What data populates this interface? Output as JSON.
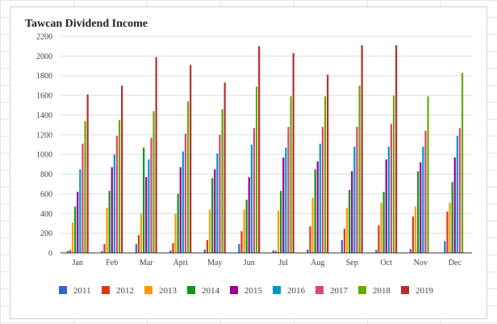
{
  "chart_data": {
    "type": "bar",
    "title": "Tawcan Dividend Income",
    "xlabel": "",
    "ylabel": "",
    "ylim": [
      0,
      2200
    ],
    "yticks": [
      0,
      200,
      400,
      600,
      800,
      1000,
      1200,
      1400,
      1600,
      1800,
      2000,
      2200
    ],
    "grid": true,
    "legend_position": "bottom",
    "categories": [
      "Jan",
      "Feb",
      "Mar",
      "Apri",
      "May",
      "Jun",
      "Jul",
      "Aug",
      "Sep",
      "Oct",
      "Nov",
      "Dec"
    ],
    "series": [
      {
        "name": "2011",
        "color": "#3366cc",
        "values": [
          20,
          20,
          90,
          25,
          35,
          90,
          25,
          35,
          130,
          30,
          40,
          120
        ]
      },
      {
        "name": "2012",
        "color": "#dc3912",
        "values": [
          30,
          90,
          180,
          100,
          130,
          220,
          20,
          270,
          245,
          280,
          370,
          420
        ]
      },
      {
        "name": "2013",
        "color": "#ff9900",
        "values": [
          310,
          460,
          400,
          400,
          440,
          440,
          430,
          560,
          460,
          510,
          470,
          510
        ]
      },
      {
        "name": "2014",
        "color": "#109618",
        "values": [
          470,
          630,
          1070,
          600,
          760,
          540,
          630,
          850,
          640,
          620,
          830,
          720
        ]
      },
      {
        "name": "2015",
        "color": "#990099",
        "values": [
          620,
          870,
          770,
          870,
          850,
          770,
          970,
          930,
          830,
          950,
          920,
          970
        ]
      },
      {
        "name": "2016",
        "color": "#0099c6",
        "values": [
          850,
          1000,
          950,
          1030,
          1010,
          1100,
          1070,
          1110,
          1080,
          1080,
          1080,
          1190
        ]
      },
      {
        "name": "2017",
        "color": "#dd4477",
        "values": [
          1110,
          1190,
          1170,
          1210,
          1200,
          1270,
          1280,
          1280,
          1280,
          1310,
          1240,
          1270
        ]
      },
      {
        "name": "2018",
        "color": "#66aa00",
        "values": [
          1340,
          1350,
          1440,
          1540,
          1460,
          1690,
          1590,
          1590,
          1700,
          1600,
          1590,
          1830
        ]
      },
      {
        "name": "2019",
        "color": "#b82e2e",
        "values": [
          1610,
          1700,
          1990,
          1910,
          1730,
          2100,
          2030,
          1810,
          2110,
          2110,
          null,
          null
        ]
      }
    ]
  }
}
